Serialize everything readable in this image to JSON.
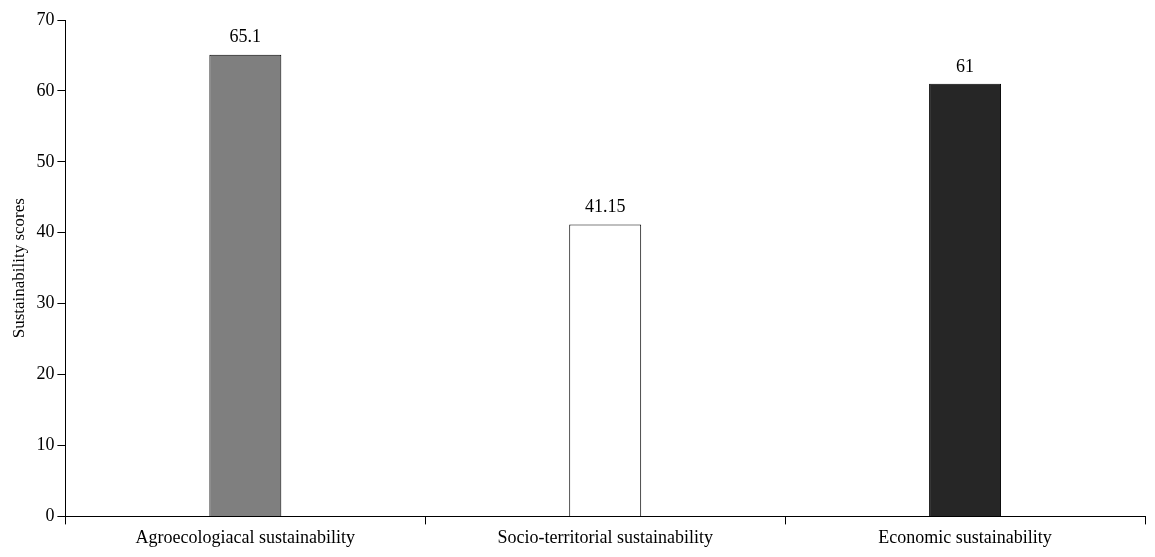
{
  "chart_data": {
    "type": "bar",
    "ylabel": "Sustainability scores",
    "categories": [
      "Agroecologiacal sustainability",
      "Socio-territorial sustainability",
      "Economic sustainability"
    ],
    "values": [
      65.1,
      41.15,
      61
    ],
    "colors": [
      "#7f7f7f",
      "#ffffff",
      "#262626"
    ],
    "ylim": [
      0,
      70
    ],
    "yticks": [
      0,
      10,
      20,
      30,
      40,
      50,
      60,
      70
    ],
    "data_labels": true,
    "grid": false,
    "legend": false
  }
}
